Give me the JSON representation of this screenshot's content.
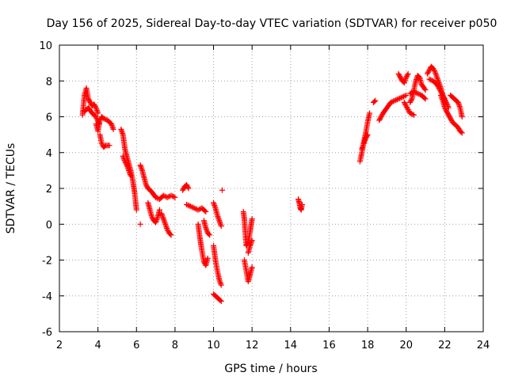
{
  "chart_data": {
    "type": "scatter",
    "title": "Day 156 of 2025, Sidereal Day-to-day VTEC variation (SDTVAR) for receiver p050",
    "xlabel": "GPS time / hours",
    "ylabel": "SDTVAR / TECUs",
    "xlim": [
      2,
      24
    ],
    "ylim": [
      -6,
      10
    ],
    "x_ticks": [
      "2",
      "4",
      "6",
      "8",
      "10",
      "12",
      "14",
      "16",
      "18",
      "20",
      "22",
      "24"
    ],
    "y_ticks": [
      "-6",
      "-4",
      "-2",
      "0",
      "2",
      "4",
      "6",
      "8",
      "10"
    ],
    "grid": true,
    "marker": "+",
    "color": "#ff0000",
    "series": [
      {
        "name": "SDTVAR",
        "segments": [
          {
            "x": [
              3.2,
              3.3,
              3.4,
              3.5,
              3.6,
              3.7,
              3.8,
              3.9,
              4.0
            ],
            "y": [
              6.1,
              7.2,
              7.6,
              7.0,
              6.8,
              6.6,
              6.7,
              6.5,
              6.2
            ]
          },
          {
            "x": [
              3.3,
              3.5,
              3.7,
              3.9,
              4.05
            ],
            "y": [
              6.3,
              6.5,
              6.2,
              6.0,
              5.6
            ]
          },
          {
            "x": [
              3.9,
              4.0,
              4.1,
              4.2,
              4.3,
              4.5,
              4.7,
              4.8
            ],
            "y": [
              5.6,
              5.2,
              5.8,
              6.0,
              5.9,
              5.8,
              5.6,
              5.3
            ]
          },
          {
            "x": [
              4.1,
              4.2,
              4.3,
              4.4,
              4.6
            ],
            "y": [
              5.0,
              4.5,
              4.3,
              4.4,
              4.4
            ]
          },
          {
            "x": [
              5.2,
              5.3,
              5.4,
              5.5,
              5.6,
              5.7,
              5.8,
              5.9,
              6.0
            ],
            "y": [
              5.3,
              5.0,
              4.2,
              3.8,
              3.4,
              3.0,
              2.5,
              1.8,
              0.8
            ]
          },
          {
            "x": [
              5.3,
              5.4,
              5.5,
              5.6,
              5.7
            ],
            "y": [
              3.8,
              3.5,
              3.3,
              3.0,
              2.7
            ]
          },
          {
            "x": [
              6.2,
              6.3,
              6.4,
              6.5,
              6.6,
              6.8,
              7.0,
              7.2,
              7.4,
              7.6,
              7.8,
              8.0
            ],
            "y": [
              3.3,
              3.0,
              2.6,
              2.2,
              2.0,
              1.8,
              1.5,
              1.4,
              1.6,
              1.5,
              1.6,
              1.5
            ]
          },
          {
            "x": [
              6.6,
              6.7,
              6.8,
              6.9,
              7.0,
              7.1,
              7.2
            ],
            "y": [
              1.2,
              0.8,
              0.4,
              0.2,
              0.1,
              0.4,
              0.8
            ]
          },
          {
            "x": [
              7.3,
              7.4,
              7.5,
              7.6,
              7.7,
              7.8
            ],
            "y": [
              0.6,
              0.3,
              0.0,
              -0.3,
              -0.5,
              -0.6
            ]
          },
          {
            "x": [
              6.2
            ],
            "y": [
              0.0
            ]
          },
          {
            "x": [
              8.4,
              8.5,
              8.6,
              8.7
            ],
            "y": [
              1.9,
              2.1,
              2.2,
              2.0
            ]
          },
          {
            "x": [
              8.6,
              8.8,
              9.0,
              9.2,
              9.4,
              9.6
            ],
            "y": [
              1.1,
              1.0,
              0.9,
              0.8,
              0.9,
              0.7
            ]
          },
          {
            "x": [
              9.2,
              9.3,
              9.4,
              9.5,
              9.6,
              9.7
            ],
            "y": [
              0.0,
              -0.8,
              -1.5,
              -2.1,
              -2.3,
              -1.9
            ]
          },
          {
            "x": [
              9.5,
              9.6,
              9.7,
              9.8
            ],
            "y": [
              0.2,
              -0.2,
              -0.5,
              -0.6
            ]
          },
          {
            "x": [
              10.0,
              10.1,
              10.2,
              10.3,
              10.4
            ],
            "y": [
              1.2,
              0.9,
              0.5,
              0.2,
              -0.1
            ]
          },
          {
            "x": [
              10.0,
              10.1,
              10.2,
              10.3,
              10.4
            ],
            "y": [
              -1.2,
              -2.0,
              -2.6,
              -3.1,
              -3.4
            ]
          },
          {
            "x": [
              10.0,
              10.1,
              10.2,
              10.3,
              10.4
            ],
            "y": [
              -3.9,
              -4.0,
              -4.1,
              -4.2,
              -4.3
            ]
          },
          {
            "x": [
              10.45
            ],
            "y": [
              1.9
            ]
          },
          {
            "x": [
              11.55,
              11.6,
              11.65,
              11.7,
              11.8,
              11.9,
              12.0
            ],
            "y": [
              0.7,
              0.3,
              -0.5,
              -1.2,
              -1.0,
              -0.4,
              0.3
            ]
          },
          {
            "x": [
              11.6,
              11.7,
              11.8,
              11.9,
              12.0
            ],
            "y": [
              -2.0,
              -2.6,
              -3.2,
              -2.8,
              -2.4
            ]
          },
          {
            "x": [
              11.8,
              11.9,
              12.0
            ],
            "y": [
              -1.6,
              -1.2,
              -0.9
            ]
          },
          {
            "x": [
              14.4,
              14.45,
              14.5,
              14.55,
              14.6
            ],
            "y": [
              1.4,
              1.2,
              0.9,
              0.8,
              1.1
            ]
          },
          {
            "x": [
              17.6,
              17.7,
              17.8,
              17.9,
              18.0,
              18.1
            ],
            "y": [
              3.5,
              4.0,
              4.6,
              5.1,
              5.7,
              6.2
            ]
          },
          {
            "x": [
              17.7,
              17.8,
              17.9,
              18.0
            ],
            "y": [
              4.2,
              4.5,
              4.8,
              5.0
            ]
          },
          {
            "x": [
              18.3,
              18.4
            ],
            "y": [
              6.8,
              6.9
            ]
          },
          {
            "x": [
              18.6,
              18.8,
              19.0,
              19.2,
              19.4,
              19.6,
              19.8,
              20.0
            ],
            "y": [
              5.8,
              6.2,
              6.5,
              6.8,
              6.9,
              7.0,
              7.1,
              7.2
            ]
          },
          {
            "x": [
              19.9,
              20.0,
              20.2,
              20.4
            ],
            "y": [
              6.8,
              6.6,
              6.2,
              6.1
            ]
          },
          {
            "x": [
              19.6,
              19.7,
              19.8,
              19.9,
              20.0,
              20.1
            ],
            "y": [
              8.4,
              8.2,
              8.0,
              7.9,
              8.2,
              8.4
            ]
          },
          {
            "x": [
              20.2,
              20.3,
              20.4,
              20.5,
              20.6,
              20.7,
              20.8,
              21.0
            ],
            "y": [
              6.8,
              7.0,
              7.5,
              8.0,
              8.3,
              8.2,
              7.8,
              7.5
            ]
          },
          {
            "x": [
              20.2,
              20.4,
              20.6,
              20.8,
              21.0
            ],
            "y": [
              7.3,
              7.4,
              7.3,
              7.2,
              7.0
            ]
          },
          {
            "x": [
              21.1,
              21.2,
              21.3,
              21.4,
              21.5,
              21.6,
              21.7,
              21.8,
              21.9,
              22.0
            ],
            "y": [
              8.4,
              8.6,
              8.8,
              8.7,
              8.5,
              8.2,
              7.9,
              7.6,
              7.2,
              6.8
            ]
          },
          {
            "x": [
              21.2,
              21.4,
              21.6,
              21.8,
              22.0,
              22.2
            ],
            "y": [
              8.1,
              8.0,
              7.8,
              7.4,
              7.0,
              6.5
            ]
          },
          {
            "x": [
              21.8,
              21.9,
              22.0,
              22.1,
              22.2,
              22.3,
              22.4,
              22.5,
              22.6,
              22.7,
              22.8,
              22.9
            ],
            "y": [
              7.2,
              6.9,
              6.5,
              6.3,
              6.1,
              5.9,
              5.7,
              5.6,
              5.5,
              5.4,
              5.2,
              5.1
            ]
          },
          {
            "x": [
              22.3,
              22.5,
              22.7,
              22.8,
              22.9
            ],
            "y": [
              7.2,
              7.0,
              6.8,
              6.5,
              6.0
            ]
          }
        ]
      }
    ]
  }
}
